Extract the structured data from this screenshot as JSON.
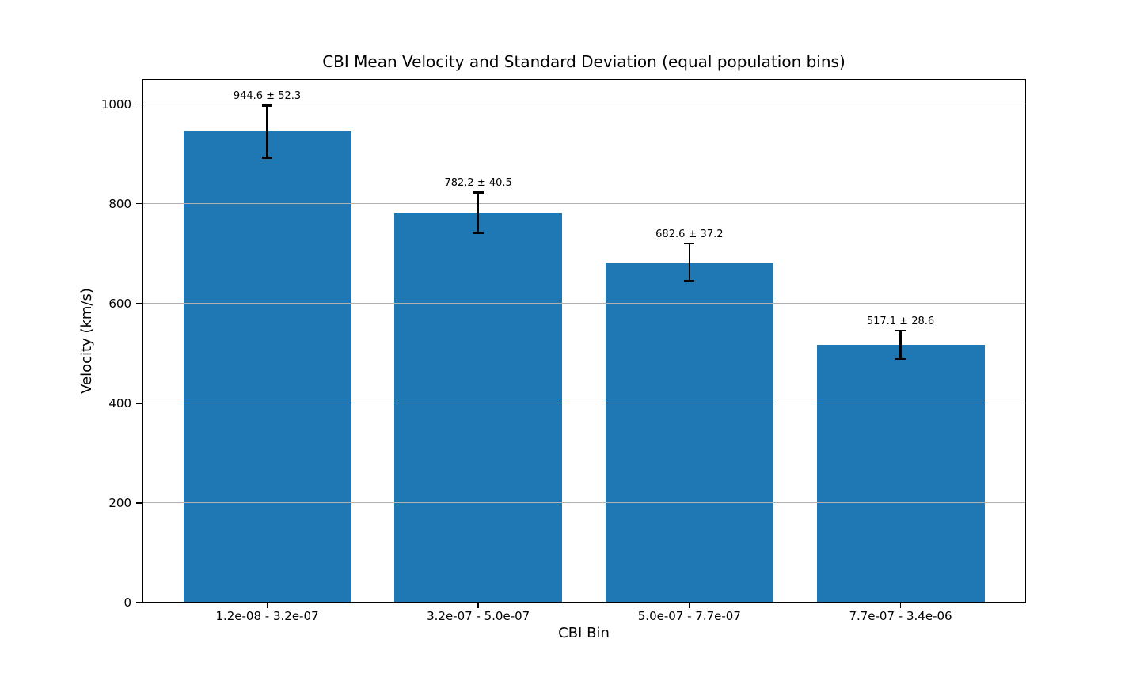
{
  "chart_data": {
    "type": "bar",
    "title": "CBI Mean Velocity and Standard Deviation (equal population bins)",
    "xlabel": "CBI Bin",
    "ylabel": "Velocity (km/s)",
    "categories": [
      "1.2e-08 - 3.2e-07",
      "3.2e-07 - 5.0e-07",
      "5.0e-07 - 7.7e-07",
      "7.7e-07 - 3.4e-06"
    ],
    "series": [
      {
        "name": "Mean velocity",
        "values": [
          944.6,
          782.2,
          682.6,
          517.1
        ],
        "errors": [
          52.3,
          40.5,
          37.2,
          28.6
        ]
      }
    ],
    "bar_labels": [
      "944.6 ± 52.3",
      "782.2 ± 40.5",
      "682.6 ± 37.2",
      "517.1 ± 28.6"
    ],
    "yticks": [
      0,
      200,
      400,
      600,
      800,
      1000
    ],
    "ylim": [
      0,
      1050
    ],
    "grid": true,
    "grid_axis": "y",
    "legend": false,
    "colors": {
      "bar": "#1f77b4",
      "grid": "#b0b0b0",
      "error_bar": "#000000",
      "axis": "#000000",
      "background": "#ffffff"
    }
  }
}
